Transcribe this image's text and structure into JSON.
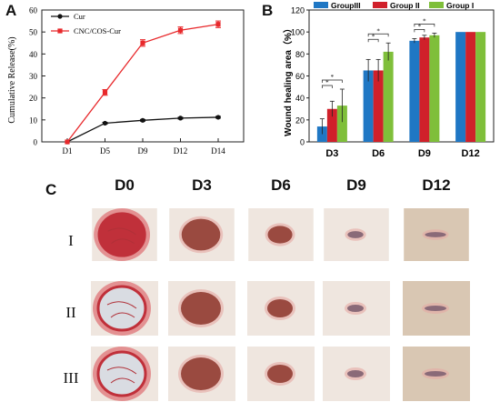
{
  "panels": {
    "a": "A",
    "b": "B",
    "c": "C"
  },
  "chart_data": [
    {
      "type": "line",
      "ylabel": "Cumulative Release(%)",
      "categories": [
        "D1",
        "D5",
        "D9",
        "D12",
        "D14"
      ],
      "ylim": [
        0,
        60
      ],
      "yticks": [
        0,
        10,
        20,
        30,
        40,
        50,
        60
      ],
      "legend_position": "top-left",
      "series": [
        {
          "name": "Cur",
          "color": "#111111",
          "values": [
            0,
            8.5,
            9.8,
            10.8,
            11.2
          ],
          "errors": [
            0,
            0.4,
            0.4,
            0.4,
            0.4
          ]
        },
        {
          "name": "CNC/COS-Cur",
          "color": "#e8282b",
          "values": [
            0,
            22.5,
            45.0,
            50.8,
            53.5
          ],
          "errors": [
            0,
            1.3,
            1.5,
            1.5,
            1.5
          ]
        }
      ]
    },
    {
      "type": "bar",
      "ylabel": "Wound healing area（%）",
      "categories": [
        "D3",
        "D6",
        "D9",
        "D12"
      ],
      "ylim": [
        0,
        120
      ],
      "yticks": [
        0,
        20,
        40,
        60,
        80,
        100,
        120
      ],
      "legend_position": "top",
      "significance_marker": "*",
      "series": [
        {
          "name": "GroupIII",
          "color": "#1f77c4",
          "values": [
            14,
            65,
            92,
            100
          ],
          "errors": [
            7,
            10,
            2,
            0
          ]
        },
        {
          "name": "Group II",
          "color": "#d0202a",
          "values": [
            30,
            65,
            95,
            100
          ],
          "errors": [
            7,
            10,
            2,
            0
          ]
        },
        {
          "name": "Group I",
          "color": "#7fbf3a",
          "values": [
            33,
            82,
            97,
            100
          ],
          "errors": [
            15,
            8,
            2,
            0
          ]
        }
      ]
    }
  ],
  "photo_grid": {
    "columns": [
      "D0",
      "D3",
      "D6",
      "D9",
      "D12"
    ],
    "rows": [
      "I",
      "II",
      "III"
    ]
  },
  "colors": {
    "skin": "#efe6df",
    "wound_fresh": "#c0303a",
    "wound_scab": "#9a4a40",
    "scar": "#8a6a78"
  }
}
